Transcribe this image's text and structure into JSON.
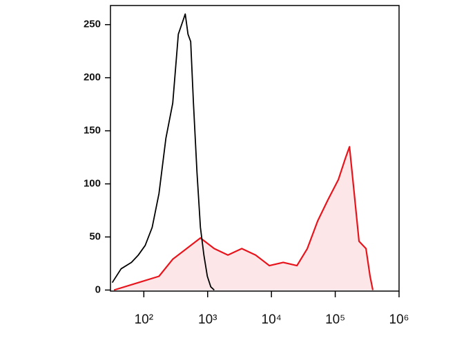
{
  "chart_data": {
    "type": "line",
    "xscale": "log",
    "xlim": [
      30,
      1000000
    ],
    "ylim": [
      -1,
      268
    ],
    "xticks": [
      {
        "value": 100,
        "label": "10²"
      },
      {
        "value": 1000,
        "label": "10³"
      },
      {
        "value": 10000,
        "label": "10⁴"
      },
      {
        "value": 100000,
        "label": "10⁵"
      },
      {
        "value": 1000000,
        "label": "10⁶"
      }
    ],
    "yticks": [
      0,
      50,
      100,
      150,
      200,
      250
    ],
    "series": [
      {
        "color": "#000000",
        "x": [
          32,
          44,
          64,
          82,
          105,
          135,
          173,
          222,
          284,
          347,
          413,
          446,
          492,
          543,
          600,
          680,
          770,
          873,
          990,
          1120,
          1270
        ],
        "values": [
          7,
          20,
          26,
          33,
          42,
          59,
          91,
          143,
          176,
          241,
          254,
          260,
          241,
          234,
          176,
          111,
          59,
          33,
          13,
          3,
          0
        ]
      },
      {
        "color": "#e8141c",
        "fill": "#fde6e8",
        "x": [
          34,
          82,
          173,
          284,
          468,
          770,
          1270,
          2080,
          3430,
          5640,
          9290,
          15300,
          25100,
          36500,
          53000,
          76900,
          112000,
          144000,
          167000,
          193000,
          236000,
          303000,
          351000,
          388000
        ],
        "values": [
          0,
          7,
          13,
          29,
          39,
          49,
          39,
          33,
          39,
          33,
          23,
          26,
          23,
          39,
          65,
          85,
          104,
          124,
          135,
          98,
          46,
          39,
          13,
          0
        ]
      }
    ]
  }
}
